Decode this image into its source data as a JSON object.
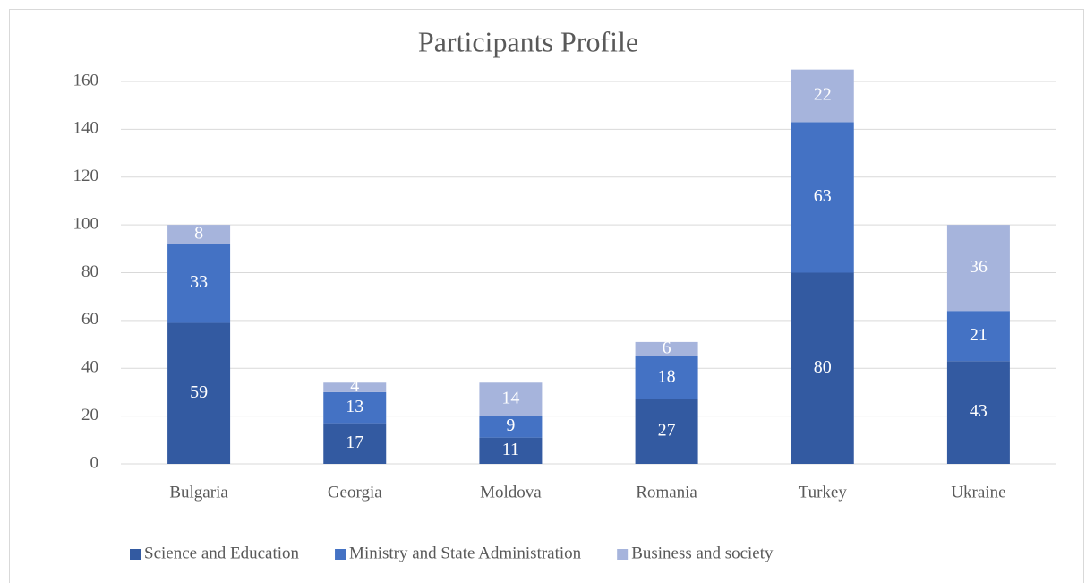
{
  "chart_data": {
    "type": "stacked_bar",
    "title": "Participants Profile",
    "categories": [
      "Bulgaria",
      "Georgia",
      "Moldova",
      "Romania",
      "Turkey",
      "Ukraine"
    ],
    "series": [
      {
        "name": "Science and Education",
        "color": "#335aa1",
        "values": [
          59,
          17,
          11,
          27,
          80,
          43
        ]
      },
      {
        "name": "Ministry and State Administration",
        "color": "#4472c4",
        "values": [
          33,
          13,
          9,
          18,
          63,
          21
        ]
      },
      {
        "name": "Business and society",
        "color": "#a6b4dc",
        "values": [
          8,
          4,
          14,
          6,
          22,
          36
        ]
      }
    ],
    "ylim": [
      0,
      160
    ],
    "yticks": [
      0,
      20,
      40,
      60,
      80,
      100,
      120,
      140,
      160
    ],
    "grid": true,
    "legend": "bottom"
  }
}
